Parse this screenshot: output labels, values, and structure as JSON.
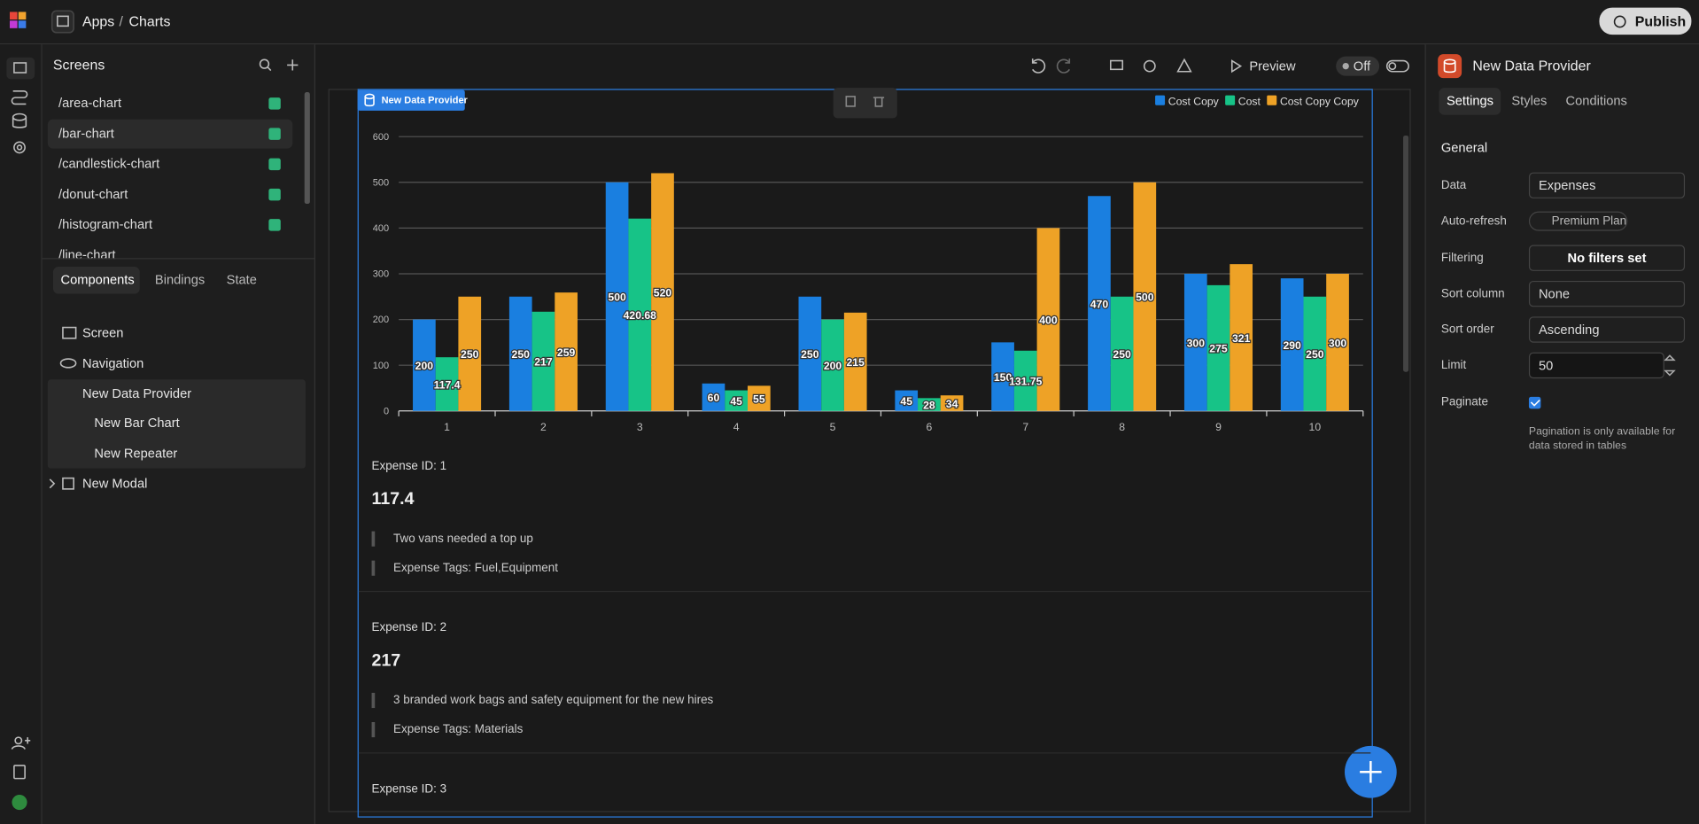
{
  "header": {
    "app": "Apps",
    "separator": "/",
    "page": "Charts",
    "publish": "Publish"
  },
  "left_panel": {
    "screens_title": "Screens",
    "screens": [
      "/area-chart",
      "/bar-chart",
      "/candlestick-chart",
      "/donut-chart",
      "/histogram-chart",
      "/line-chart"
    ],
    "tabs": [
      "Components",
      "Bindings",
      "State"
    ],
    "tree": [
      "Screen",
      "Navigation",
      "New Data Provider",
      "New Bar Chart",
      "New Repeater",
      "New Modal"
    ]
  },
  "toolbar": {
    "preview": "Preview",
    "toggle": "Off"
  },
  "canvas": {
    "component_tag": "New Data Provider",
    "items": [
      {
        "id": "Expense ID: 1",
        "amount": 117.4,
        "description": "Two vans needed a top up",
        "tags": "Expense Tags: Fuel,Equipment"
      },
      {
        "id": "Expense ID: 2",
        "amount": 217,
        "description": "3 branded work bags and safety equipment for the new hires",
        "tags": "Expense Tags: Materials"
      },
      {
        "id": "Expense ID: 3"
      }
    ]
  },
  "chart_data": {
    "type": "bar",
    "categories": [
      "1",
      "2",
      "3",
      "4",
      "5",
      "6",
      "7",
      "8",
      "9",
      "10"
    ],
    "series": [
      {
        "name": "Cost Copy",
        "color": "#1a7fe0",
        "values": [
          200,
          250,
          500,
          60,
          250,
          45,
          150,
          470,
          300,
          290
        ]
      },
      {
        "name": "Cost",
        "color": "#17c387",
        "values": [
          117.4,
          217,
          420.68,
          45,
          200,
          28,
          131.75,
          250,
          275,
          250
        ]
      },
      {
        "name": "Cost Copy Copy",
        "color": "#eea226",
        "values": [
          250,
          259,
          520,
          55,
          215,
          34,
          400,
          500,
          321,
          300
        ]
      }
    ],
    "ylim": [
      0,
      600
    ],
    "yticks": [
      0,
      100,
      200,
      300,
      400,
      500,
      600
    ],
    "grid": true,
    "legend": "top-right"
  },
  "right_panel": {
    "title": "New Data Provider",
    "tabs": [
      "Settings",
      "Styles",
      "Conditions"
    ],
    "section": "General",
    "fields": [
      {
        "label": "Data",
        "value": "Expenses"
      },
      {
        "label": "Auto-refresh",
        "value": "Premium Plan"
      },
      {
        "label": "Filtering",
        "value": "No filters set"
      },
      {
        "label": "Sort column",
        "value": "None"
      },
      {
        "label": "Sort order",
        "value": "Ascending"
      },
      {
        "label": "Limit",
        "value": 50
      },
      {
        "label": "Paginate"
      }
    ],
    "note": "Pagination is only available for data stored in tables"
  }
}
